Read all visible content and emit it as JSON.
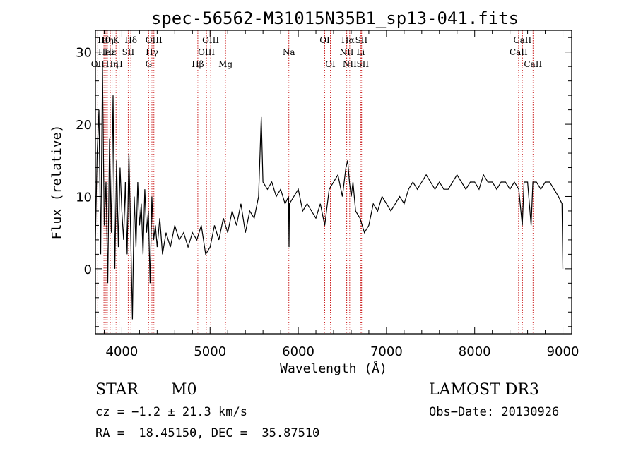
{
  "chart_data": {
    "type": "line",
    "title": "spec-56562-M31015N35B1_sp13-041.fits",
    "xlabel": "Wavelength (Å)",
    "ylabel": "Flux (relative)",
    "xlim": [
      3700,
      9100
    ],
    "ylim": [
      -9,
      33
    ],
    "xticks": [
      4000,
      5000,
      6000,
      7000,
      8000,
      9000
    ],
    "yticks": [
      0,
      10,
      20,
      30
    ],
    "series": [
      {
        "name": "flux",
        "x": [
          3700,
          3720,
          3740,
          3760,
          3780,
          3800,
          3820,
          3840,
          3860,
          3880,
          3900,
          3920,
          3940,
          3960,
          3980,
          4000,
          4020,
          4040,
          4060,
          4080,
          4100,
          4120,
          4140,
          4160,
          4180,
          4200,
          4220,
          4240,
          4260,
          4280,
          4300,
          4320,
          4340,
          4360,
          4380,
          4400,
          4430,
          4460,
          4500,
          4550,
          4600,
          4650,
          4700,
          4750,
          4800,
          4850,
          4900,
          4950,
          5000,
          5050,
          5100,
          5150,
          5200,
          5250,
          5300,
          5350,
          5400,
          5450,
          5500,
          5550,
          5580,
          5600,
          5650,
          5700,
          5750,
          5800,
          5850,
          5890,
          5895,
          5900,
          5950,
          6000,
          6050,
          6100,
          6150,
          6200,
          6250,
          6300,
          6350,
          6400,
          6450,
          6500,
          6540,
          6560,
          6580,
          6600,
          6620,
          6650,
          6700,
          6750,
          6800,
          6850,
          6900,
          6950,
          7000,
          7050,
          7100,
          7150,
          7200,
          7250,
          7300,
          7350,
          7400,
          7450,
          7500,
          7550,
          7600,
          7650,
          7700,
          7750,
          7800,
          7850,
          7900,
          7950,
          8000,
          8050,
          8100,
          8150,
          8200,
          8250,
          8300,
          8350,
          8400,
          8450,
          8500,
          8540,
          8560,
          8600,
          8640,
          8660,
          8700,
          8750,
          8800,
          8850,
          8900,
          8950,
          8990,
          9000
        ],
        "y": [
          4,
          16,
          22,
          2,
          28,
          6,
          12,
          -2,
          18,
          5,
          24,
          0,
          15,
          3,
          14,
          8,
          4,
          12,
          2,
          16,
          5,
          -7,
          10,
          3,
          12,
          6,
          9,
          2,
          11,
          5,
          8,
          -2,
          10,
          4,
          6,
          3,
          7,
          2,
          5,
          3,
          6,
          4,
          5,
          3,
          5,
          4,
          6,
          2,
          3,
          6,
          4,
          7,
          5,
          8,
          6,
          9,
          5,
          8,
          7,
          10,
          21,
          12,
          11,
          12,
          10,
          11,
          9,
          10,
          3,
          9,
          10,
          11,
          8,
          9,
          8,
          7,
          9,
          6,
          11,
          12,
          13,
          10,
          14,
          15,
          12,
          10,
          12,
          8,
          7,
          5,
          6,
          9,
          8,
          10,
          9,
          8,
          9,
          10,
          9,
          11,
          12,
          11,
          12,
          13,
          12,
          11,
          12,
          11,
          11,
          12,
          13,
          12,
          11,
          12,
          12,
          11,
          13,
          12,
          12,
          11,
          12,
          12,
          11,
          12,
          11,
          6,
          12,
          12,
          6,
          12,
          12,
          11,
          12,
          12,
          11,
          10,
          9,
          0
        ]
      }
    ],
    "lines": [
      {
        "w": 3727,
        "row": 2,
        "label": "OII"
      },
      {
        "w": 3797,
        "row": 0,
        "label": "Hθ"
      },
      {
        "w": 3820,
        "row": 1,
        "label": "HeI"
      },
      {
        "w": 3835,
        "row": 0,
        "label": "Hη"
      },
      {
        "w": 3869,
        "row": 1,
        "label": "Hε"
      },
      {
        "w": 3889,
        "row": 2,
        "label": "Hη"
      },
      {
        "w": 3934,
        "row": 0,
        "label": "K"
      },
      {
        "w": 3969,
        "row": 2,
        "label": "H"
      },
      {
        "w": 4072,
        "row": 1,
        "label": "SII"
      },
      {
        "w": 4102,
        "row": 0,
        "label": "Hδ"
      },
      {
        "w": 4304,
        "row": 2,
        "label": "G"
      },
      {
        "w": 4341,
        "row": 1,
        "label": "Hγ"
      },
      {
        "w": 4363,
        "row": 0,
        "label": "OIII"
      },
      {
        "w": 4861,
        "row": 2,
        "label": "Hβ"
      },
      {
        "w": 4959,
        "row": 1,
        "label": "OIII"
      },
      {
        "w": 5007,
        "row": 0,
        "label": "OIII"
      },
      {
        "w": 5175,
        "row": 2,
        "label": "Mg"
      },
      {
        "w": 5893,
        "row": 1,
        "label": "Na"
      },
      {
        "w": 6300,
        "row": 0,
        "label": "OI"
      },
      {
        "w": 6364,
        "row": 2,
        "label": "OI"
      },
      {
        "w": 6548,
        "row": 1,
        "label": "NII"
      },
      {
        "w": 6563,
        "row": 0,
        "label": "Hα"
      },
      {
        "w": 6583,
        "row": 2,
        "label": "NII"
      },
      {
        "w": 6707,
        "row": 1,
        "label": "Li"
      },
      {
        "w": 6716,
        "row": 0,
        "label": "SII"
      },
      {
        "w": 6731,
        "row": 2,
        "label": "SII"
      },
      {
        "w": 8498,
        "row": 1,
        "label": "CaII"
      },
      {
        "w": 8542,
        "row": 0,
        "label": "CaII"
      },
      {
        "w": 8662,
        "row": 2,
        "label": "CaII"
      }
    ],
    "colors": {
      "spectrum": "#000000",
      "lines": "#cc2222",
      "axes": "#000000"
    }
  },
  "info": {
    "object_class": "STAR",
    "subclass": "M0",
    "survey": "LAMOST DR3",
    "redshift": "cz = −1.2 ± 21.3 km/s",
    "obs_date": "Obs−Date: 20130926",
    "coords": "RA =  18.45150, DEC =  35.87510"
  }
}
